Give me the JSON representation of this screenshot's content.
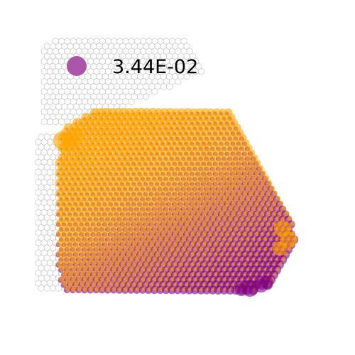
{
  "chart_data": {
    "type": "scatter",
    "description_kind": "hexagonal spatial spot plot with two overlaid channels",
    "legend": {
      "entries": [
        {
          "label": "3.44E-02",
          "color": "#aa55aa"
        }
      ],
      "placement": "top-left"
    },
    "series": [
      {
        "color": "#ffa500",
        "opacity": 0.6
      },
      {
        "color": "#800080",
        "opacity": 0.6
      }
    ],
    "background_grid": {
      "shape": "hexagon",
      "stroke": "#c8c8c8"
    },
    "axes": {
      "visible": false
    },
    "grid": false
  },
  "colors": {
    "orange": "#ffa500",
    "purple": "#800080",
    "legend_marker": "#aa55aa",
    "hex_outline": "#c8c8c8"
  }
}
